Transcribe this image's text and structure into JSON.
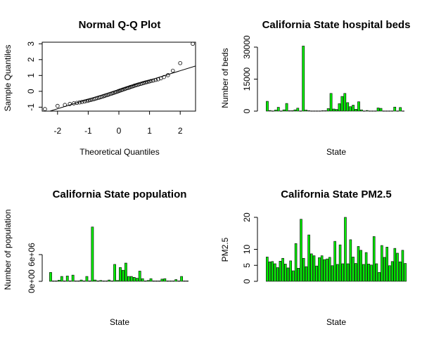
{
  "chart_data": [
    {
      "type": "scatter",
      "title": "Normal Q-Q Plot",
      "xlabel": "Theoretical Quantiles",
      "ylabel": "Sample Quantiles",
      "xlim": [
        -2.5,
        2.5
      ],
      "ylim": [
        -1.25,
        3.1
      ],
      "xticks": [
        -2,
        -1,
        0,
        1,
        2
      ],
      "yticks": [
        -1,
        0,
        1,
        2,
        3
      ],
      "x": [
        -2.41,
        -2.0,
        -1.76,
        -1.6,
        -1.47,
        -1.37,
        -1.28,
        -1.2,
        -1.12,
        -1.05,
        -0.99,
        -0.93,
        -0.87,
        -0.81,
        -0.76,
        -0.71,
        -0.65,
        -0.6,
        -0.55,
        -0.5,
        -0.46,
        -0.41,
        -0.36,
        -0.32,
        -0.27,
        -0.22,
        -0.18,
        -0.13,
        -0.09,
        -0.04,
        0.0,
        0.04,
        0.09,
        0.13,
        0.18,
        0.22,
        0.27,
        0.32,
        0.36,
        0.41,
        0.46,
        0.5,
        0.55,
        0.6,
        0.65,
        0.71,
        0.76,
        0.81,
        0.87,
        0.93,
        0.99,
        1.05,
        1.12,
        1.2,
        1.28,
        1.37,
        1.47,
        1.6,
        1.76,
        2.0,
        2.41
      ],
      "y": [
        -1.12,
        -0.92,
        -0.86,
        -0.8,
        -0.76,
        -0.73,
        -0.7,
        -0.67,
        -0.64,
        -0.61,
        -0.58,
        -0.55,
        -0.52,
        -0.49,
        -0.46,
        -0.43,
        -0.4,
        -0.37,
        -0.34,
        -0.31,
        -0.28,
        -0.25,
        -0.22,
        -0.19,
        -0.16,
        -0.13,
        -0.1,
        -0.07,
        -0.04,
        -0.01,
        0.02,
        0.05,
        0.08,
        0.11,
        0.14,
        0.17,
        0.2,
        0.23,
        0.26,
        0.29,
        0.32,
        0.35,
        0.38,
        0.41,
        0.44,
        0.47,
        0.5,
        0.53,
        0.56,
        0.59,
        0.62,
        0.65,
        0.68,
        0.72,
        0.76,
        0.82,
        0.9,
        1.02,
        1.3,
        1.78,
        3.0
      ],
      "reference_line": {
        "intercept": 0.1,
        "slope": 0.6
      }
    },
    {
      "type": "bar",
      "title": "California State hospital beds",
      "xlabel": "State",
      "ylabel": "Number of beds",
      "ylim": [
        0,
        30000
      ],
      "yticks": [
        0,
        15000,
        30000
      ],
      "values": [
        4600,
        300,
        100,
        500,
        1800,
        100,
        600,
        3600,
        200,
        200,
        600,
        1400,
        100,
        30500,
        500,
        200,
        100,
        100,
        100,
        100,
        200,
        200,
        1200,
        8300,
        1000,
        800,
        3500,
        6900,
        8300,
        4000,
        2100,
        2800,
        900,
        4400,
        600,
        100,
        300,
        100,
        100,
        100,
        1500,
        1300,
        100,
        100,
        100,
        100,
        1900,
        100,
        1700,
        100
      ]
    },
    {
      "type": "bar",
      "title": "California State population",
      "xlabel": "State",
      "ylabel": "Number of population",
      "ylim": [
        0,
        12000000
      ],
      "yticks": [
        0,
        6000000
      ],
      "ytick_labels": [
        "0e+00",
        "6e+06"
      ],
      "values": [
        2000000,
        100000,
        100000,
        250000,
        1100000,
        100000,
        1200000,
        100000,
        1400000,
        100000,
        100000,
        300000,
        100000,
        1100000,
        100000,
        12200000,
        300000,
        100000,
        200000,
        100000,
        100000,
        300000,
        100000,
        3800000,
        200000,
        3100000,
        2500000,
        4100000,
        1100000,
        1100000,
        900000,
        700000,
        2300000,
        600000,
        100000,
        200000,
        600000,
        100000,
        100000,
        100000,
        500000,
        600000,
        100000,
        100000,
        100000,
        400000,
        100000,
        1100000,
        100000,
        100000
      ]
    },
    {
      "type": "bar",
      "title": "California State PM2.5",
      "xlabel": "State",
      "ylabel": "PM2.5",
      "ylim": [
        0,
        20
      ],
      "yticks": [
        0,
        5,
        10,
        20
      ],
      "values": [
        7.6,
        6.1,
        6.2,
        5.5,
        4.3,
        6.3,
        7.2,
        5.4,
        4.2,
        6.4,
        3.3,
        11.8,
        4.1,
        19.4,
        7.2,
        4.6,
        14.5,
        8.6,
        8.0,
        4.8,
        7.4,
        8.0,
        6.8,
        7.0,
        7.5,
        4.9,
        12.5,
        5.3,
        11.4,
        5.5,
        20.0,
        5.5,
        13.0,
        7.6,
        5.6,
        10.9,
        9.7,
        5.3,
        9.0,
        5.4,
        5.1,
        14.0,
        5.5,
        2.8,
        11.2,
        7.5,
        10.7,
        4.9,
        6.2,
        10.3,
        8.8,
        6.1,
        9.7,
        5.6
      ]
    }
  ]
}
